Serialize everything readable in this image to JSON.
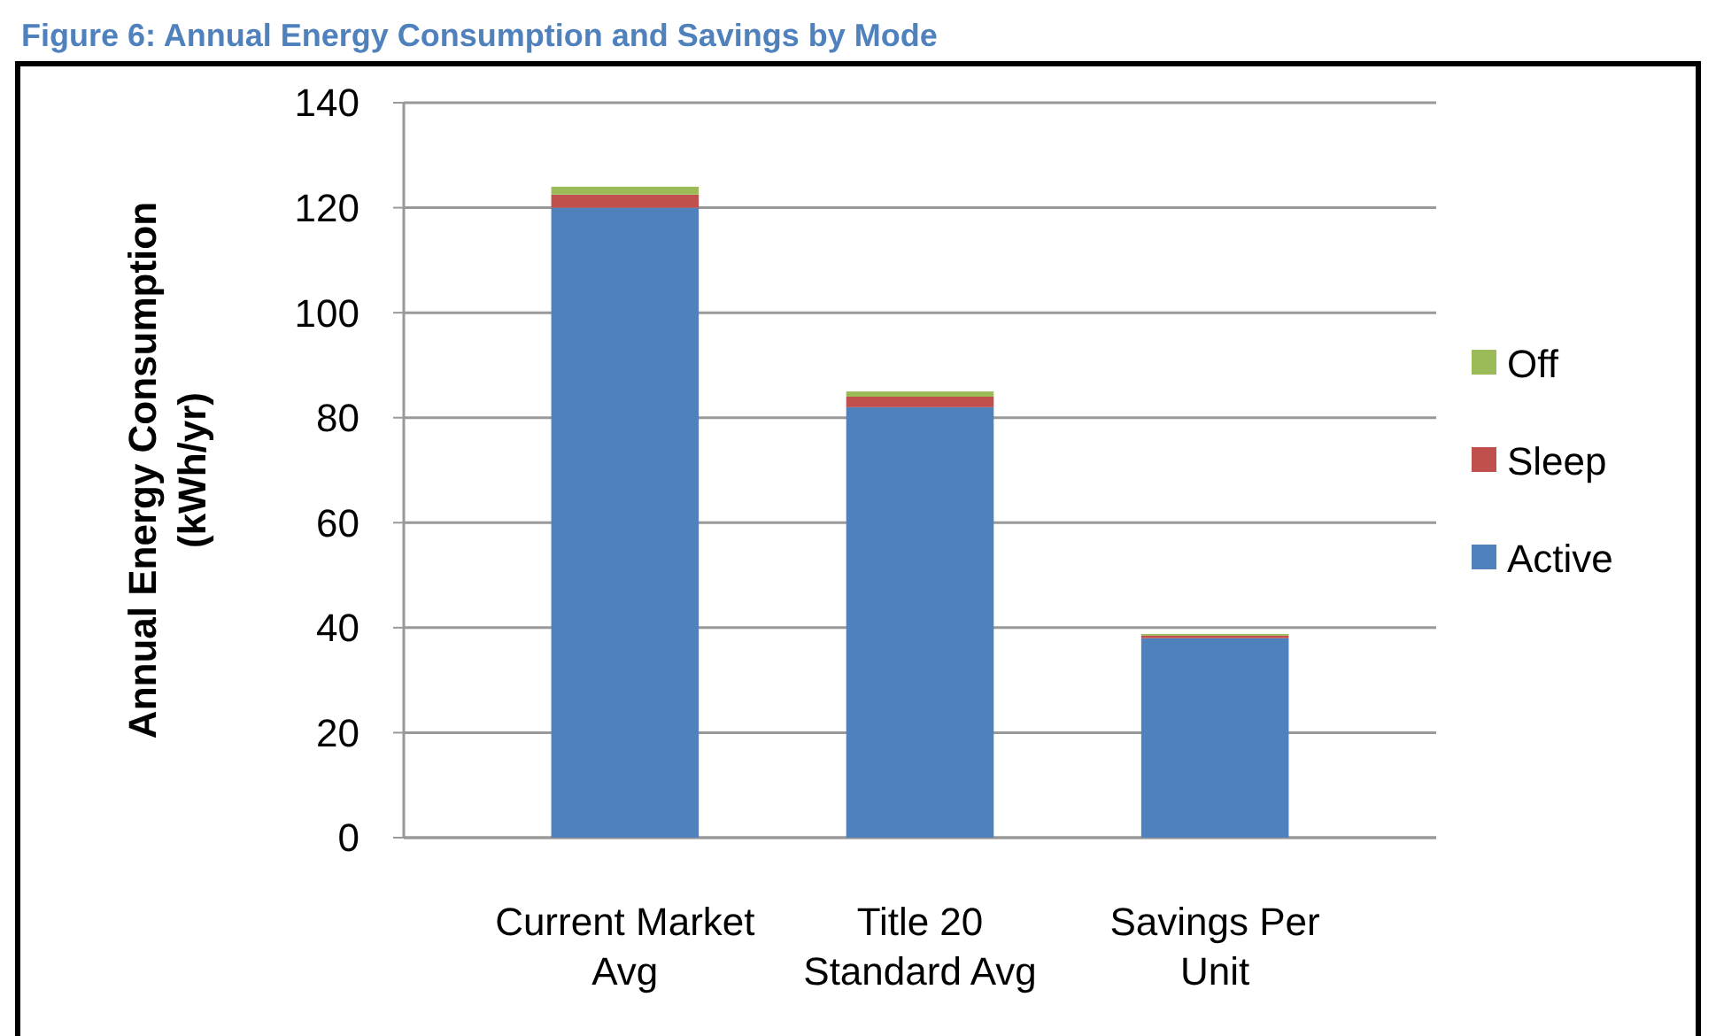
{
  "chart_data": {
    "type": "bar",
    "title": "Figure 6: Annual Energy Consumption and Savings by Mode",
    "ylabel": "Annual Energy Consumption (kWh/yr)",
    "categories": [
      "Current Market Avg",
      "Title 20 Standard Avg",
      "Savings Per Unit"
    ],
    "stacked": true,
    "series": [
      {
        "name": "Active",
        "color": "#4f81bd",
        "values": [
          120,
          82,
          38
        ]
      },
      {
        "name": "Sleep",
        "color": "#c0504d",
        "values": [
          2.5,
          2,
          0.5
        ]
      },
      {
        "name": "Off",
        "color": "#9bbb59",
        "values": [
          1.5,
          1,
          0.3
        ]
      }
    ],
    "ylim": [
      0,
      140
    ],
    "yticks": [
      0,
      20,
      40,
      60,
      80,
      100,
      120,
      140
    ],
    "grid": "y",
    "legend": "right"
  }
}
